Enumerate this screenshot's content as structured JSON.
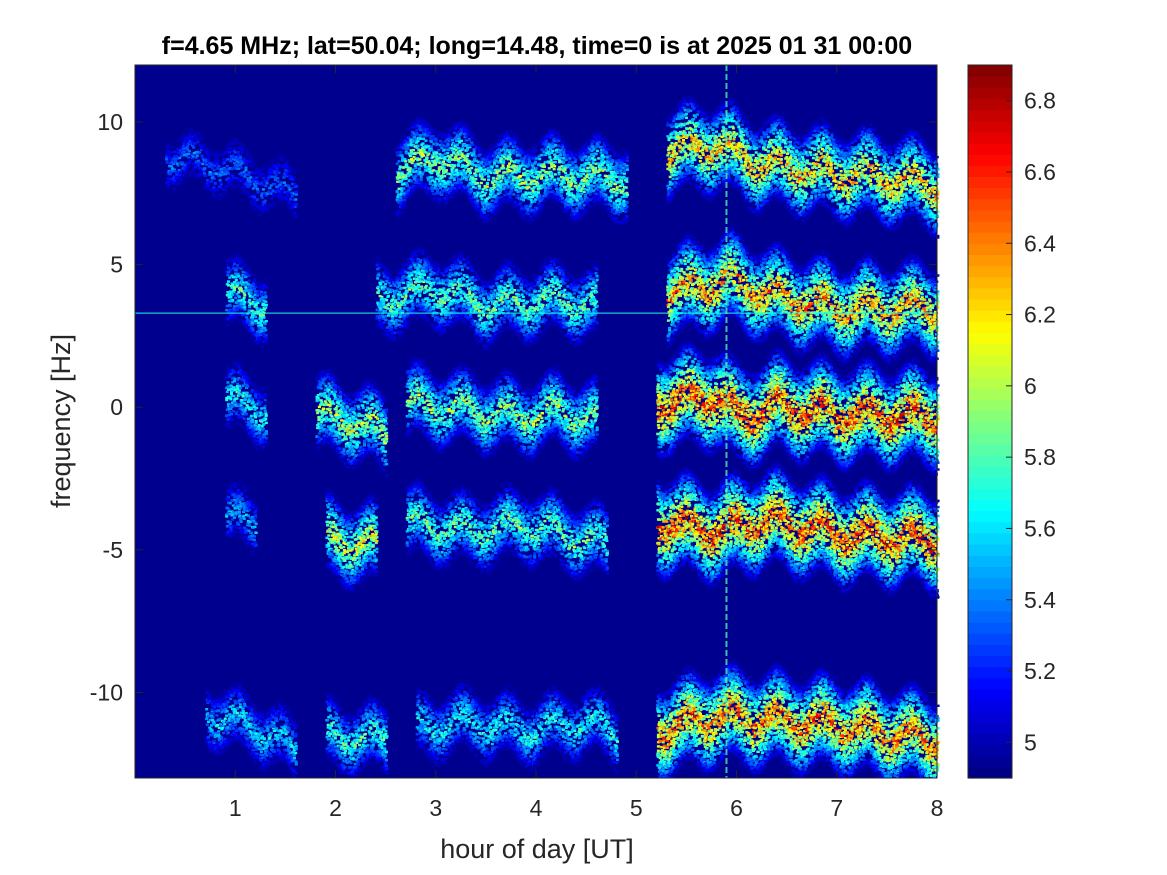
{
  "chart_data": {
    "type": "heatmap",
    "title": "f=4.65 MHz;  lat=50.04; long=14.48, time=0 is at 2025 01 31 00:00",
    "xlabel": "hour of day [UT]",
    "ylabel": "frequency [Hz]",
    "xlim": [
      0,
      8
    ],
    "ylim": [
      -13,
      12
    ],
    "x_ticks": [
      1,
      2,
      3,
      4,
      5,
      6,
      7,
      8
    ],
    "x_tick_labels": [
      "1",
      "2",
      "3",
      "4",
      "5",
      "6",
      "7",
      "8"
    ],
    "y_ticks": [
      -10,
      -5,
      0,
      5,
      10
    ],
    "y_tick_labels": [
      "-10",
      "-5",
      "0",
      "5",
      "10"
    ],
    "colormap": "jet",
    "color_range": [
      4.9,
      6.9
    ],
    "colorbar_ticks": [
      5,
      5.2,
      5.4,
      5.6,
      5.8,
      6,
      6.2,
      6.4,
      6.6,
      6.8
    ],
    "colorbar_tick_labels": [
      "5",
      "5.2",
      "5.4",
      "5.6",
      "5.8",
      "6",
      "6.2",
      "6.4",
      "6.6",
      "6.8"
    ],
    "background_value": 4.95,
    "grid": false,
    "traces": [
      {
        "x": [
          0.3,
          0.8,
          1.2,
          1.6
        ],
        "y": [
          8.8,
          8.5,
          8.0,
          7.5
        ],
        "intensity": 5.5
      },
      {
        "x": [
          2.6,
          3.0,
          3.5,
          4.2,
          4.9
        ],
        "y": [
          8.3,
          8.8,
          8.1,
          8.2,
          8.0
        ],
        "intensity": 6.2
      },
      {
        "x": [
          5.3,
          5.8,
          6.2,
          6.8,
          7.4,
          8.0
        ],
        "y": [
          9.0,
          9.2,
          8.6,
          8.3,
          8.1,
          7.8
        ],
        "intensity": 6.6
      },
      {
        "x": [
          0.9,
          1.3
        ],
        "y": [
          4.0,
          3.6
        ],
        "intensity": 6.0
      },
      {
        "x": [
          2.4,
          3.0,
          3.5,
          4.2,
          4.6
        ],
        "y": [
          3.8,
          4.2,
          3.6,
          3.8,
          3.6
        ],
        "intensity": 6.1
      },
      {
        "x": [
          5.3,
          5.9,
          6.3,
          7.0,
          8.0
        ],
        "y": [
          4.0,
          4.5,
          4.0,
          3.5,
          3.5
        ],
        "intensity": 6.7
      },
      {
        "x": [
          0.9,
          1.3
        ],
        "y": [
          0.3,
          -0.1
        ],
        "intensity": 5.9
      },
      {
        "x": [
          1.8,
          2.3,
          2.5
        ],
        "y": [
          -0.2,
          -0.6,
          -1.0
        ],
        "intensity": 6.3
      },
      {
        "x": [
          2.7,
          3.2,
          3.8,
          4.2,
          4.6
        ],
        "y": [
          0.2,
          0.0,
          -0.3,
          -0.1,
          -0.4
        ],
        "intensity": 6.2
      },
      {
        "x": [
          5.2,
          5.8,
          6.0,
          6.4,
          7.0,
          8.0
        ],
        "y": [
          0.2,
          0.4,
          -0.3,
          0.1,
          -0.2,
          -0.3
        ],
        "intensity": 6.9
      },
      {
        "x": [
          0.9,
          1.2
        ],
        "y": [
          -3.8,
          -4.0
        ],
        "intensity": 5.7
      },
      {
        "x": [
          1.9,
          2.4
        ],
        "y": [
          -4.6,
          -4.8
        ],
        "intensity": 6.4
      },
      {
        "x": [
          2.7,
          3.3,
          3.9,
          4.5,
          4.7
        ],
        "y": [
          -4.0,
          -4.3,
          -4.1,
          -4.6,
          -4.8
        ],
        "intensity": 6.1
      },
      {
        "x": [
          5.2,
          5.8,
          6.3,
          7.0,
          8.0
        ],
        "y": [
          -4.0,
          -4.3,
          -3.9,
          -4.4,
          -4.6
        ],
        "intensity": 6.9
      },
      {
        "x": [
          0.7,
          1.2,
          1.6
        ],
        "y": [
          -10.7,
          -11.2,
          -12.0
        ],
        "intensity": 5.8
      },
      {
        "x": [
          1.9,
          2.5
        ],
        "y": [
          -11.5,
          -11.6
        ],
        "intensity": 6.0
      },
      {
        "x": [
          2.8,
          3.3,
          3.9,
          4.5,
          4.8
        ],
        "y": [
          -11.2,
          -11.0,
          -11.3,
          -11.0,
          -11.4
        ],
        "intensity": 5.9
      },
      {
        "x": [
          5.2,
          5.8,
          6.3,
          7.0,
          8.0
        ],
        "y": [
          -11.3,
          -10.8,
          -10.9,
          -11.1,
          -11.7
        ],
        "intensity": 6.8
      }
    ],
    "horizontal_line": {
      "y": 3.3,
      "intensity": 5.7
    },
    "vertical_line": {
      "x": 5.9,
      "intensity": 5.8
    }
  }
}
